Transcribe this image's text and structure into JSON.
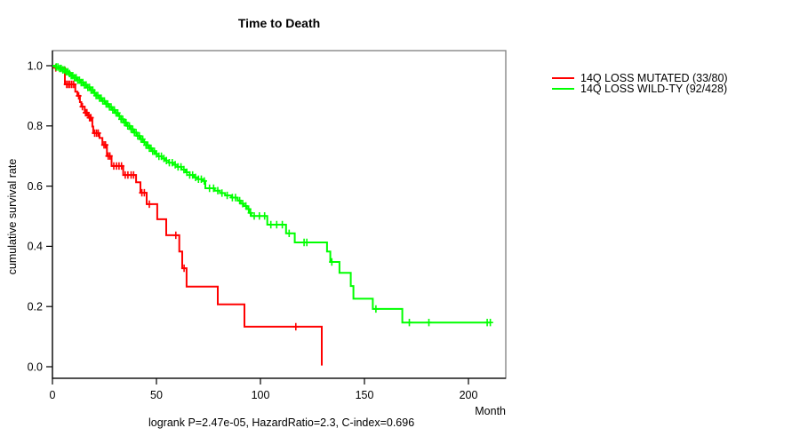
{
  "chart_data": {
    "type": "line",
    "subtype": "kaplan-meier-step-survival",
    "title": "Time to Death",
    "xlabel": "Month",
    "ylabel": "cumulative survival rate",
    "annotation": "logrank P=2.47e-05, HazardRatio=2.3, C-index=0.696",
    "x_tick_labels": [
      "0",
      "50",
      "100",
      "150",
      "200"
    ],
    "x_tick_values": [
      0,
      50,
      100,
      150,
      200
    ],
    "y_tick_labels": [
      "0.0",
      "0.2",
      "0.4",
      "0.6",
      "0.8",
      "1.0"
    ],
    "y_tick_values": [
      0.0,
      0.2,
      0.4,
      0.6,
      0.8,
      1.0
    ],
    "xlim": [
      0,
      218
    ],
    "ylim": [
      0,
      1.0
    ],
    "grid": false,
    "legend_position": "right-outside",
    "series": [
      {
        "name": "14Q LOSS MUTATED (33/80)",
        "color": "#ff0000",
        "steps": [
          [
            0,
            1.0
          ],
          [
            1.3,
            0.993
          ],
          [
            6.0,
            0.938
          ],
          [
            11.0,
            0.914
          ],
          [
            12.0,
            0.9
          ],
          [
            13.2,
            0.879
          ],
          [
            13.9,
            0.864
          ],
          [
            15.5,
            0.844
          ],
          [
            17.3,
            0.827
          ],
          [
            19.2,
            0.798
          ],
          [
            19.6,
            0.776
          ],
          [
            22.6,
            0.76
          ],
          [
            24.0,
            0.737
          ],
          [
            26.2,
            0.7
          ],
          [
            28.4,
            0.667
          ],
          [
            34.0,
            0.637
          ],
          [
            40.2,
            0.613
          ],
          [
            42.3,
            0.578
          ],
          [
            45.3,
            0.54
          ],
          [
            50.4,
            0.49
          ],
          [
            54.7,
            0.437
          ],
          [
            61.0,
            0.383
          ],
          [
            62.4,
            0.327
          ],
          [
            64.5,
            0.266
          ],
          [
            79.5,
            0.207
          ],
          [
            92.3,
            0.133
          ],
          [
            129.5,
            0.004
          ]
        ],
        "censor_months": [
          1.6,
          6.8,
          7.6,
          8.4,
          9.3,
          10.2,
          12.6,
          14.4,
          15.9,
          16.6,
          17.8,
          18.5,
          20.3,
          21.2,
          22.0,
          24.8,
          25.5,
          26.8,
          27.6,
          29.5,
          30.8,
          32.0,
          33.2,
          35.0,
          36.3,
          37.8,
          39.0,
          43.0,
          44.2,
          46.6,
          59.3,
          63.3,
          117.0
        ]
      },
      {
        "name": "14Q LOSS WILD-TY (92/428)",
        "color": "#00ff00",
        "steps": [
          [
            0,
            1.0
          ],
          [
            1.5,
            0.996
          ],
          [
            3.0,
            0.991
          ],
          [
            4.5,
            0.986
          ],
          [
            6.0,
            0.98
          ],
          [
            7.5,
            0.974
          ],
          [
            9.0,
            0.967
          ],
          [
            10.5,
            0.96
          ],
          [
            12.0,
            0.952
          ],
          [
            13.5,
            0.944
          ],
          [
            15.0,
            0.936
          ],
          [
            16.5,
            0.928
          ],
          [
            18.0,
            0.919
          ],
          [
            19.5,
            0.91
          ],
          [
            21.0,
            0.901
          ],
          [
            22.5,
            0.892
          ],
          [
            24.0,
            0.883
          ],
          [
            25.5,
            0.873
          ],
          [
            27.0,
            0.863
          ],
          [
            28.5,
            0.853
          ],
          [
            30.0,
            0.843
          ],
          [
            31.5,
            0.833
          ],
          [
            33.0,
            0.822
          ],
          [
            34.5,
            0.811
          ],
          [
            36.0,
            0.8
          ],
          [
            37.5,
            0.789
          ],
          [
            39.0,
            0.778
          ],
          [
            40.5,
            0.767
          ],
          [
            42.0,
            0.756
          ],
          [
            43.5,
            0.746
          ],
          [
            45.0,
            0.736
          ],
          [
            46.5,
            0.726
          ],
          [
            48.0,
            0.716
          ],
          [
            49.5,
            0.707
          ],
          [
            51.0,
            0.699
          ],
          [
            52.5,
            0.692
          ],
          [
            54.0,
            0.685
          ],
          [
            56.0,
            0.678
          ],
          [
            58.0,
            0.671
          ],
          [
            60.0,
            0.664
          ],
          [
            62.0,
            0.655
          ],
          [
            64.0,
            0.646
          ],
          [
            66.0,
            0.637
          ],
          [
            68.0,
            0.629
          ],
          [
            70.0,
            0.623
          ],
          [
            72.0,
            0.617
          ],
          [
            73.5,
            0.593
          ],
          [
            78.0,
            0.585
          ],
          [
            80.5,
            0.577
          ],
          [
            83.0,
            0.569
          ],
          [
            86.0,
            0.562
          ],
          [
            89.0,
            0.552
          ],
          [
            90.5,
            0.542
          ],
          [
            92.0,
            0.534
          ],
          [
            93.5,
            0.524
          ],
          [
            94.8,
            0.511
          ],
          [
            95.6,
            0.501
          ],
          [
            103.3,
            0.472
          ],
          [
            112.3,
            0.443
          ],
          [
            116.5,
            0.413
          ],
          [
            132.0,
            0.383
          ],
          [
            133.6,
            0.348
          ],
          [
            138.0,
            0.312
          ],
          [
            143.4,
            0.268
          ],
          [
            144.7,
            0.226
          ],
          [
            154.0,
            0.192
          ],
          [
            168.2,
            0.147
          ],
          [
            210.5,
            0.147
          ]
        ],
        "censor_months": [
          1.8,
          2.6,
          3.4,
          4.2,
          5.0,
          5.8,
          6.6,
          7.4,
          8.2,
          9.0,
          9.8,
          10.6,
          11.4,
          12.2,
          13.0,
          13.8,
          14.6,
          15.4,
          16.2,
          17.0,
          17.8,
          18.6,
          19.4,
          20.2,
          21.0,
          21.8,
          22.6,
          23.4,
          24.2,
          25.0,
          25.8,
          26.6,
          27.4,
          28.2,
          29.0,
          29.8,
          30.6,
          31.4,
          32.2,
          33.0,
          33.8,
          34.6,
          35.4,
          36.2,
          37.0,
          37.8,
          38.6,
          39.4,
          40.2,
          41.0,
          41.8,
          42.6,
          43.4,
          44.2,
          45.0,
          45.8,
          46.6,
          47.4,
          48.2,
          49.0,
          50.0,
          51.2,
          52.4,
          53.6,
          54.8,
          56.2,
          57.6,
          59.0,
          60.4,
          61.8,
          63.2,
          64.6,
          66.0,
          67.4,
          68.8,
          70.2,
          71.6,
          73.0,
          75.5,
          77.5,
          79.5,
          81.5,
          84.0,
          86.5,
          88.0,
          90.0,
          91.5,
          93.0,
          94.3,
          95.2,
          97.0,
          99.5,
          102.0,
          105.0,
          107.8,
          110.5,
          113.8,
          121.0,
          122.3,
          134.3,
          155.5,
          171.6,
          181.0,
          209.0,
          210.5
        ]
      }
    ],
    "axis_color": "#000000",
    "box_color": "#7e7e7e"
  }
}
